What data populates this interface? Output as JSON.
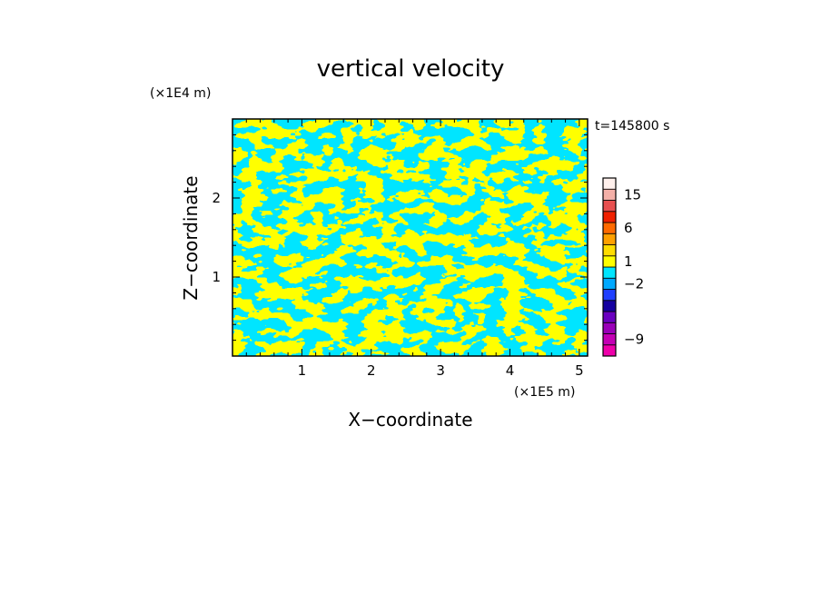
{
  "chart_data": {
    "type": "heatmap",
    "title": "vertical velocity",
    "xlabel": "X−coordinate",
    "ylabel": "Z−coordinate",
    "x_unit": "(×1E5 m)",
    "y_unit": "(×1E4 m)",
    "time_label": "t=145800 s",
    "xlim": [
      0,
      5.12
    ],
    "ylim": [
      0,
      3.0
    ],
    "x_ticks": [
      {
        "value": 1,
        "label": "1"
      },
      {
        "value": 2,
        "label": "2"
      },
      {
        "value": 3,
        "label": "3"
      },
      {
        "value": 4,
        "label": "4"
      },
      {
        "value": 5,
        "label": "5"
      }
    ],
    "y_ticks": [
      {
        "value": 1,
        "label": "1"
      },
      {
        "value": 2,
        "label": "2"
      }
    ],
    "field_colors": {
      "positive": "#ffff00",
      "negative": "#00e5ff"
    },
    "colorbar": {
      "levels": [
        {
          "color": "#ee00aa"
        },
        {
          "color": "#c400b4"
        },
        {
          "color": "#9a00b8"
        },
        {
          "color": "#6a00c0"
        },
        {
          "color": "#1400a0"
        },
        {
          "color": "#2040ff"
        },
        {
          "color": "#00a8ff"
        },
        {
          "color": "#00e5ff"
        },
        {
          "color": "#ffff00"
        },
        {
          "color": "#ffdc00"
        },
        {
          "color": "#ffa000"
        },
        {
          "color": "#ff6a00"
        },
        {
          "color": "#f02000"
        },
        {
          "color": "#e85050"
        },
        {
          "color": "#f4b0a8"
        },
        {
          "color": "#fff0ec"
        }
      ],
      "labels": [
        {
          "level": 1.5,
          "label": "−9"
        },
        {
          "level": 6.5,
          "label": "−2"
        },
        {
          "level": 8.5,
          "label": "1"
        },
        {
          "level": 11.5,
          "label": "6"
        },
        {
          "level": 14.5,
          "label": "15"
        }
      ]
    }
  }
}
